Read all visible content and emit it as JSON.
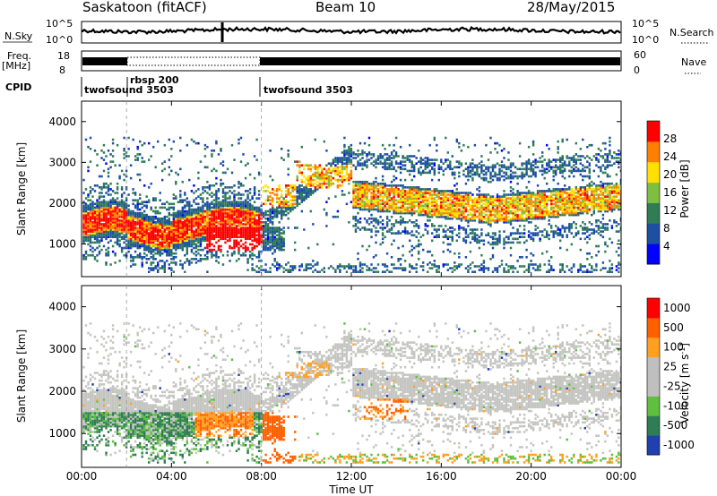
{
  "header": {
    "station": "Saskatoon (fitACF)",
    "beam": "Beam 10",
    "date": "28/May/2015"
  },
  "noise_panel": {
    "left_label": "N.Sky",
    "right_label": "N.Search",
    "ticks_left": [
      "10^5",
      "10^0"
    ],
    "ticks_right": [
      "10^5",
      "10^0"
    ]
  },
  "freq_panel": {
    "left_label": "Freq.",
    "left_unit": "[MHz]",
    "right_label": "Nave",
    "ticks_left": [
      "18",
      "8"
    ],
    "ticks_right": [
      "60",
      "0"
    ]
  },
  "cpid": {
    "label": "CPID",
    "segments": [
      {
        "name": "twofsound 3503",
        "start_hour": 0
      },
      {
        "name": "rbsp 200",
        "start_hour": 2
      },
      {
        "name": "twofsound 3503",
        "start_hour": 8
      }
    ]
  },
  "chart_data": [
    {
      "type": "heatmap",
      "title": "",
      "ylabel": "Slant Range [km]",
      "xlabel": "",
      "xlim": [
        0,
        24
      ],
      "ylim": [
        200,
        4500
      ],
      "yticks": [
        1000,
        2000,
        3000,
        4000
      ],
      "colorbar": {
        "label": "Power [dB]",
        "ticks": [
          "28",
          "24",
          "20",
          "16",
          "12",
          "8",
          "4"
        ],
        "range": [
          0,
          30
        ],
        "colors": [
          "#0000ff",
          "#1d4fa3",
          "#2e7d54",
          "#7fbf3f",
          "#ffe000",
          "#ff8000",
          "#ff0000"
        ]
      },
      "description": "Backscatter power (dB) versus slant range and universal time"
    },
    {
      "type": "heatmap",
      "title": "",
      "ylabel": "Slant Range [km]",
      "xlabel": "Time UT",
      "xlim": [
        0,
        24
      ],
      "ylim": [
        200,
        4500
      ],
      "yticks": [
        1000,
        2000,
        3000,
        4000
      ],
      "xticks": [
        "00:00",
        "04:00",
        "08:00",
        "12:00",
        "16:00",
        "20:00",
        "00:00"
      ],
      "colorbar": {
        "label": "Velocity [m s",
        "label_sup": "-1",
        "label_close": "]",
        "ticks": [
          "1000",
          "500",
          "100",
          "25",
          "-25",
          "-100",
          "-500",
          "-1000"
        ],
        "colors": [
          "#2040b0",
          "#2e7d54",
          "#5fbf3f",
          "#bfbfbf",
          "#bfbfbf",
          "#ffa020",
          "#ff6000",
          "#ff0000"
        ]
      },
      "description": "Line-of-sight Doppler velocity (m/s) versus slant range and universal time"
    }
  ]
}
